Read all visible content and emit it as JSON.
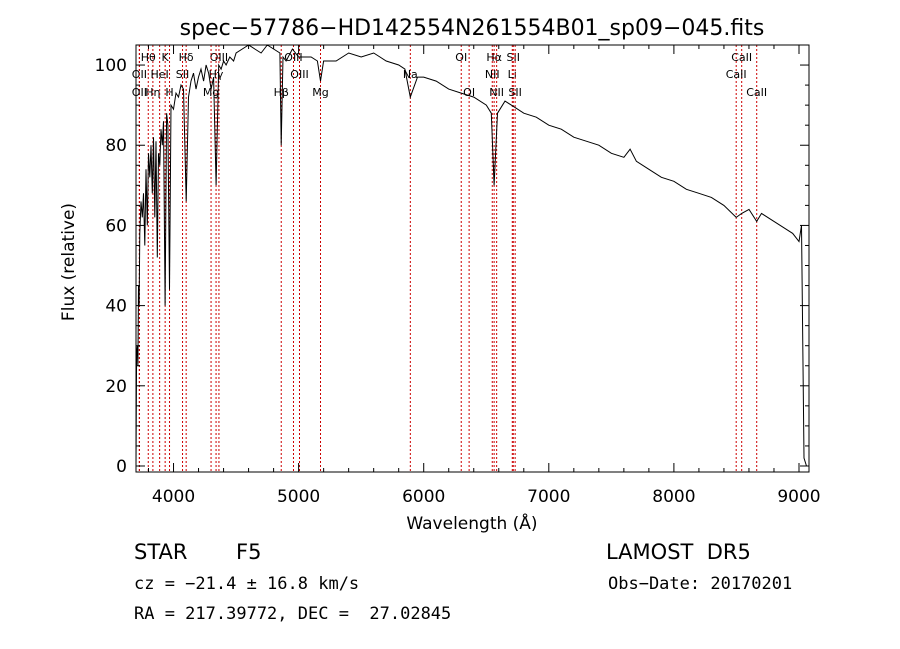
{
  "chart_data": {
    "type": "line",
    "title": "spec−57786−HD142554N261554B01_sp09−045.fits",
    "xlabel": "Wavelength (Å)",
    "ylabel": "Flux (relative)",
    "xlim": [
      3700,
      9080
    ],
    "ylim": [
      -1.5,
      105
    ],
    "xticks": [
      4000,
      5000,
      6000,
      7000,
      8000,
      9000
    ],
    "yticks": [
      0,
      20,
      40,
      60,
      80,
      100
    ],
    "grid": false,
    "series": [
      {
        "x": [
          3700,
          3705,
          3710,
          3715,
          3720,
          3725,
          3730,
          3740,
          3750,
          3760,
          3770,
          3780,
          3790,
          3800,
          3810,
          3820,
          3830,
          3840,
          3850,
          3860,
          3870,
          3880,
          3890,
          3900,
          3910,
          3920,
          3933,
          3945,
          3955,
          3968,
          3980,
          4000,
          4020,
          4040,
          4060,
          4080,
          4101,
          4120,
          4140,
          4160,
          4180,
          4200,
          4220,
          4240,
          4260,
          4280,
          4300,
          4320,
          4340,
          4361,
          4380,
          4400,
          4420,
          4450,
          4480,
          4500,
          4550,
          4600,
          4650,
          4700,
          4750,
          4800,
          4850,
          4861,
          4875,
          4900,
          4950,
          5000,
          5050,
          5100,
          5150,
          5175,
          5200,
          5300,
          5400,
          5500,
          5600,
          5700,
          5800,
          5850,
          5893,
          5950,
          6000,
          6100,
          6200,
          6300,
          6400,
          6500,
          6540,
          6563,
          6590,
          6650,
          6700,
          6800,
          6900,
          7000,
          7100,
          7200,
          7300,
          7400,
          7500,
          7600,
          7650,
          7700,
          7800,
          7900,
          8000,
          8100,
          8200,
          8300,
          8400,
          8498,
          8542,
          8600,
          8662,
          8700,
          8800,
          8900,
          8950,
          9000,
          9020,
          9040,
          9060
        ],
        "values": [
          0,
          28,
          30,
          25,
          45,
          40,
          58,
          66,
          62,
          68,
          55,
          74,
          60,
          78,
          72,
          80,
          68,
          82,
          62,
          81,
          52,
          78,
          75,
          84,
          80,
          86,
          40,
          88,
          85,
          44,
          90,
          89,
          93,
          92,
          95,
          94,
          66,
          92,
          96,
          98,
          94,
          97,
          99,
          96,
          100,
          98,
          94,
          97,
          70,
          100,
          99,
          101,
          100,
          102,
          101,
          103,
          104,
          105,
          104,
          103,
          105,
          104,
          103,
          80,
          102,
          101,
          104,
          102,
          102,
          102,
          101,
          96,
          101,
          101,
          103,
          102,
          103,
          101,
          100,
          99,
          92,
          97,
          97,
          96,
          94,
          93,
          92,
          90,
          88,
          70,
          88,
          91,
          90,
          88,
          87,
          85,
          84,
          82,
          81,
          80,
          78,
          77,
          79,
          76,
          74,
          72,
          71,
          69,
          68,
          67,
          65,
          62,
          63,
          64,
          61,
          63,
          61,
          59,
          58,
          56,
          60,
          2,
          0
        ]
      }
    ],
    "lines": [
      {
        "label": "Hθ",
        "x": 3798,
        "row": 0
      },
      {
        "label": "OII",
        "x": 3727,
        "row": 1
      },
      {
        "label": "OII",
        "x": 3727,
        "row": 2
      },
      {
        "label": "Hη",
        "x": 3835,
        "row": 2
      },
      {
        "label": "HeI",
        "x": 3889,
        "row": 1
      },
      {
        "label": "K",
        "x": 3933,
        "row": 0
      },
      {
        "label": "H",
        "x": 3968,
        "row": 2
      },
      {
        "label": "SII",
        "x": 4072,
        "row": 1
      },
      {
        "label": "Hδ",
        "x": 4101,
        "row": 0
      },
      {
        "label": "OIII",
        "x": 4363,
        "row": 0
      },
      {
        "label": "Hγ",
        "x": 4340,
        "row": 1
      },
      {
        "label": "Mg",
        "x": 4300,
        "row": 2
      },
      {
        "label": "Hβ",
        "x": 4861,
        "row": 2
      },
      {
        "label": "OIII",
        "x": 4959,
        "row": 0
      },
      {
        "label": "OIII",
        "x": 5007,
        "row": 1
      },
      {
        "label": "Mg",
        "x": 5175,
        "row": 2
      },
      {
        "label": "Na",
        "x": 5893,
        "row": 1
      },
      {
        "label": "OI",
        "x": 6300,
        "row": 0
      },
      {
        "label": "OI",
        "x": 6363,
        "row": 2
      },
      {
        "label": "Hα",
        "x": 6563,
        "row": 0
      },
      {
        "label": "NII",
        "x": 6548,
        "row": 1
      },
      {
        "label": "NII",
        "x": 6583,
        "row": 2
      },
      {
        "label": "SII",
        "x": 6716,
        "row": 0
      },
      {
        "label": "Li",
        "x": 6708,
        "row": 1
      },
      {
        "label": "SII",
        "x": 6731,
        "row": 2
      },
      {
        "label": "CaII",
        "x": 8542,
        "row": 0
      },
      {
        "label": "CaII",
        "x": 8498,
        "row": 1
      },
      {
        "label": "CaII",
        "x": 8662,
        "row": 2
      }
    ]
  },
  "info": {
    "object_class": "STAR",
    "subclass": "F5",
    "survey": "LAMOST  DR5",
    "cz": "cz = −21.4 ± 16.8 km/s",
    "obs_date": "Obs−Date: 20170201",
    "radec": "RA = 217.39772, DEC =  27.02845"
  }
}
